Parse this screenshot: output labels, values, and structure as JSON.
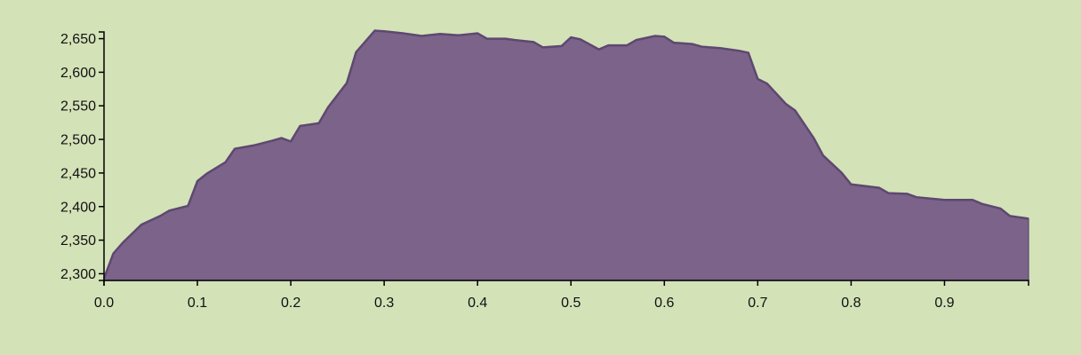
{
  "chart_data": {
    "type": "area",
    "title": "",
    "xlabel": "",
    "ylabel": "",
    "xlim": [
      0,
      0.99
    ],
    "ylim": [
      2290,
      2660
    ],
    "x_ticks": [
      0.0,
      0.1,
      0.2,
      0.3,
      0.4,
      0.5,
      0.6,
      0.7,
      0.8,
      0.9
    ],
    "x_tick_labels": [
      "0.0",
      "0.1",
      "0.2",
      "0.3",
      "0.4",
      "0.5",
      "0.6",
      "0.7",
      "0.8",
      "0.9"
    ],
    "y_ticks": [
      2300,
      2350,
      2400,
      2450,
      2500,
      2550,
      2600,
      2650
    ],
    "y_tick_labels": [
      "2,300",
      "2,350",
      "2,400",
      "2,450",
      "2,500",
      "2,550",
      "2,600",
      "2,650"
    ],
    "grid": false,
    "colors": {
      "fill": "#7b6389",
      "stroke": "#5e4870",
      "background": "#d4e2b8"
    },
    "series": [
      {
        "x": [
          0.0,
          0.01,
          0.02,
          0.04,
          0.06,
          0.07,
          0.09,
          0.1,
          0.11,
          0.13,
          0.14,
          0.16,
          0.18,
          0.19,
          0.2,
          0.21,
          0.23,
          0.24,
          0.26,
          0.27,
          0.29,
          0.3,
          0.32,
          0.34,
          0.36,
          0.38,
          0.4,
          0.41,
          0.43,
          0.44,
          0.46,
          0.47,
          0.49,
          0.5,
          0.51,
          0.53,
          0.54,
          0.56,
          0.57,
          0.59,
          0.6,
          0.61,
          0.63,
          0.64,
          0.66,
          0.68,
          0.69,
          0.7,
          0.71,
          0.73,
          0.74,
          0.76,
          0.77,
          0.79,
          0.8,
          0.83,
          0.84,
          0.86,
          0.87,
          0.9,
          0.91,
          0.93,
          0.94,
          0.96,
          0.97,
          0.99
        ],
        "y": [
          2293,
          2330,
          2346,
          2373,
          2386,
          2394,
          2401,
          2438,
          2449,
          2466,
          2486,
          2491,
          2498,
          2502,
          2497,
          2520,
          2524,
          2548,
          2584,
          2630,
          2662,
          2661,
          2658,
          2654,
          2657,
          2655,
          2658,
          2650,
          2650,
          2648,
          2645,
          2637,
          2639,
          2652,
          2649,
          2634,
          2640,
          2640,
          2648,
          2654,
          2653,
          2644,
          2642,
          2638,
          2636,
          2632,
          2629,
          2590,
          2583,
          2553,
          2543,
          2502,
          2476,
          2450,
          2433,
          2428,
          2420,
          2419,
          2414,
          2410,
          2410,
          2410,
          2404,
          2397,
          2386,
          2382
        ]
      }
    ]
  }
}
